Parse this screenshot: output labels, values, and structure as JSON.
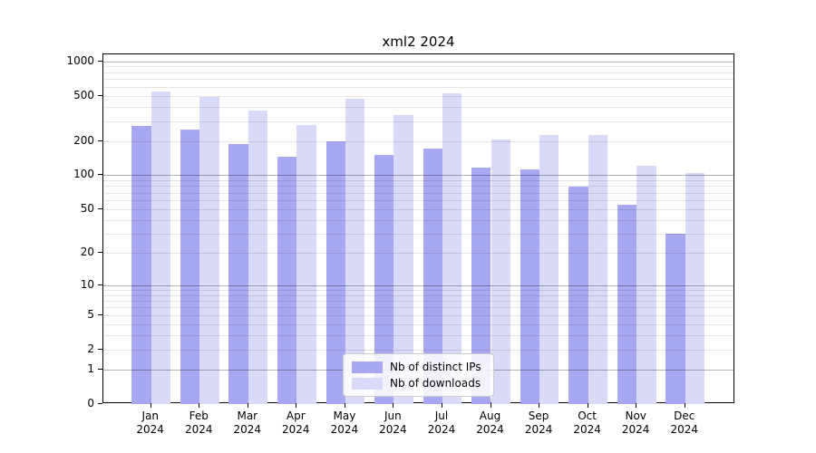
{
  "chart": {
    "title": "xml2 2024"
  },
  "legend": {
    "items": [
      {
        "label": "Nb of distinct IPs",
        "color": "#a8a8f2"
      },
      {
        "label": "Nb of downloads",
        "color": "#d9d9f8"
      }
    ]
  },
  "chart_data": {
    "type": "bar",
    "title": "xml2 2024",
    "categories": [
      "Jan",
      "Feb",
      "Mar",
      "Apr",
      "May",
      "Jun",
      "Jul",
      "Aug",
      "Sep",
      "Oct",
      "Nov",
      "Dec"
    ],
    "category_year": "2024",
    "series": [
      {
        "name": "Nb of distinct IPs",
        "color": "#a8a8f2",
        "values": [
          272,
          253,
          189,
          146,
          198,
          151,
          170,
          116,
          113,
          79,
          55,
          30
        ]
      },
      {
        "name": "Nb of downloads",
        "color": "#d9d9f8",
        "values": [
          545,
          488,
          370,
          276,
          472,
          338,
          520,
          205,
          227,
          224,
          122,
          105
        ]
      }
    ],
    "xlabel": "",
    "ylabel": "",
    "yscale": "log1p",
    "ylim": [
      0,
      1150
    ],
    "yticks": [
      0,
      1,
      2,
      5,
      10,
      20,
      50,
      100,
      200,
      500,
      1000
    ],
    "grid_major": [
      1,
      10,
      100,
      1000
    ],
    "grid_minor": [
      2,
      3,
      4,
      5,
      6,
      7,
      8,
      9,
      20,
      30,
      40,
      50,
      60,
      70,
      80,
      90,
      200,
      300,
      400,
      500,
      600,
      700,
      800,
      900
    ],
    "grid": "on",
    "legend_position": "lower center",
    "colors": {
      "grid_minor": "rgba(0,0,0,0.10)",
      "grid_major": "rgba(0,0,0,0.30)",
      "axis": "#000000"
    }
  }
}
